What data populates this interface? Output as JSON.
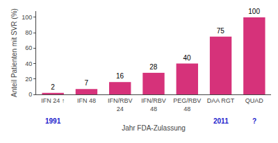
{
  "chart_data": {
    "type": "bar",
    "categories": [
      "IFN 24 ↑",
      "IFN 48",
      "IFN/RBV\n24",
      "IFN/RBV\n48",
      "PEG/RBV\n48",
      "DAA RGT",
      "QUAD"
    ],
    "values": [
      2,
      7,
      16,
      28,
      40,
      75,
      100
    ],
    "color": "#d6327a",
    "data_labels": true,
    "annotations": [
      {
        "category": "IFN 24 ↑",
        "text": "1991",
        "color": "#2222cc"
      },
      {
        "category": "DAA RGT",
        "text": "2011",
        "color": "#2222cc"
      },
      {
        "category": "QUAD",
        "text": "?",
        "color": "#2222cc"
      }
    ],
    "xlabel": "Jahr FDA-Zulassung",
    "ylabel": "Anteil Patienten mit SVR (%)",
    "ylim": [
      0,
      108
    ],
    "yticks": [
      0,
      20,
      40,
      60,
      80,
      100
    ],
    "grid": false
  }
}
